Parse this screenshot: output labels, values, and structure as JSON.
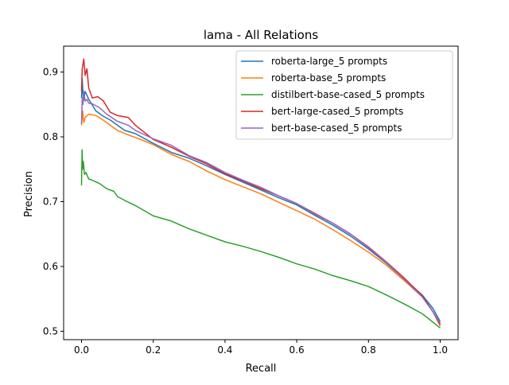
{
  "chart_data": {
    "type": "line",
    "title": "lama - All Relations",
    "xlabel": "Recall",
    "ylabel": "Precision",
    "xlim": [
      -0.05,
      1.05
    ],
    "ylim": [
      0.487,
      0.94
    ],
    "xticks": [
      0.0,
      0.2,
      0.4,
      0.6,
      0.8,
      1.0
    ],
    "xtick_labels": [
      "0.0",
      "0.2",
      "0.4",
      "0.6",
      "0.8",
      "1.0"
    ],
    "yticks": [
      0.5,
      0.6,
      0.7,
      0.8,
      0.9
    ],
    "ytick_labels": [
      "0.5",
      "0.6",
      "0.7",
      "0.8",
      "0.9"
    ],
    "grid": false,
    "legend_position": "top-right",
    "series": [
      {
        "name": "roberta-large_5 prompts",
        "color": "#1f77b4",
        "points": [
          [
            0.0,
            0.86
          ],
          [
            0.002,
            0.89
          ],
          [
            0.005,
            0.855
          ],
          [
            0.01,
            0.87
          ],
          [
            0.02,
            0.858
          ],
          [
            0.04,
            0.84
          ],
          [
            0.06,
            0.832
          ],
          [
            0.08,
            0.826
          ],
          [
            0.1,
            0.818
          ],
          [
            0.12,
            0.81
          ],
          [
            0.15,
            0.805
          ],
          [
            0.2,
            0.79
          ],
          [
            0.25,
            0.776
          ],
          [
            0.3,
            0.767
          ],
          [
            0.35,
            0.755
          ],
          [
            0.4,
            0.742
          ],
          [
            0.45,
            0.73
          ],
          [
            0.5,
            0.718
          ],
          [
            0.55,
            0.706
          ],
          [
            0.6,
            0.695
          ],
          [
            0.65,
            0.679
          ],
          [
            0.7,
            0.664
          ],
          [
            0.75,
            0.647
          ],
          [
            0.8,
            0.627
          ],
          [
            0.85,
            0.605
          ],
          [
            0.9,
            0.58
          ],
          [
            0.95,
            0.556
          ],
          [
            0.98,
            0.535
          ],
          [
            1.0,
            0.515
          ]
        ]
      },
      {
        "name": "roberta-base_5 prompts",
        "color": "#ff7f0e",
        "points": [
          [
            0.0,
            0.818
          ],
          [
            0.003,
            0.84
          ],
          [
            0.006,
            0.822
          ],
          [
            0.01,
            0.83
          ],
          [
            0.02,
            0.835
          ],
          [
            0.04,
            0.833
          ],
          [
            0.06,
            0.826
          ],
          [
            0.08,
            0.818
          ],
          [
            0.1,
            0.81
          ],
          [
            0.13,
            0.803
          ],
          [
            0.16,
            0.797
          ],
          [
            0.2,
            0.788
          ],
          [
            0.25,
            0.773
          ],
          [
            0.3,
            0.762
          ],
          [
            0.35,
            0.747
          ],
          [
            0.4,
            0.734
          ],
          [
            0.45,
            0.723
          ],
          [
            0.5,
            0.712
          ],
          [
            0.55,
            0.699
          ],
          [
            0.6,
            0.686
          ],
          [
            0.65,
            0.673
          ],
          [
            0.7,
            0.657
          ],
          [
            0.75,
            0.64
          ],
          [
            0.8,
            0.622
          ],
          [
            0.85,
            0.602
          ],
          [
            0.9,
            0.578
          ],
          [
            0.95,
            0.553
          ],
          [
            0.98,
            0.53
          ],
          [
            1.0,
            0.508
          ]
        ]
      },
      {
        "name": "distilbert-base-cased_5 prompts",
        "color": "#2ca02c",
        "points": [
          [
            0.0,
            0.725
          ],
          [
            0.0015,
            0.78
          ],
          [
            0.003,
            0.75
          ],
          [
            0.005,
            0.762
          ],
          [
            0.008,
            0.742
          ],
          [
            0.012,
            0.745
          ],
          [
            0.02,
            0.735
          ],
          [
            0.03,
            0.733
          ],
          [
            0.05,
            0.728
          ],
          [
            0.07,
            0.72
          ],
          [
            0.09,
            0.716
          ],
          [
            0.1,
            0.708
          ],
          [
            0.12,
            0.702
          ],
          [
            0.15,
            0.694
          ],
          [
            0.2,
            0.678
          ],
          [
            0.25,
            0.67
          ],
          [
            0.3,
            0.658
          ],
          [
            0.35,
            0.648
          ],
          [
            0.4,
            0.638
          ],
          [
            0.45,
            0.631
          ],
          [
            0.5,
            0.623
          ],
          [
            0.55,
            0.614
          ],
          [
            0.6,
            0.604
          ],
          [
            0.65,
            0.596
          ],
          [
            0.7,
            0.586
          ],
          [
            0.75,
            0.578
          ],
          [
            0.8,
            0.569
          ],
          [
            0.85,
            0.556
          ],
          [
            0.9,
            0.542
          ],
          [
            0.95,
            0.527
          ],
          [
            1.0,
            0.505
          ]
        ]
      },
      {
        "name": "bert-large-cased_5 prompts",
        "color": "#d62728",
        "points": [
          [
            0.0,
            0.87
          ],
          [
            0.002,
            0.905
          ],
          [
            0.004,
            0.912
          ],
          [
            0.006,
            0.92
          ],
          [
            0.01,
            0.895
          ],
          [
            0.015,
            0.905
          ],
          [
            0.02,
            0.875
          ],
          [
            0.03,
            0.86
          ],
          [
            0.045,
            0.862
          ],
          [
            0.06,
            0.856
          ],
          [
            0.08,
            0.838
          ],
          [
            0.1,
            0.833
          ],
          [
            0.13,
            0.83
          ],
          [
            0.15,
            0.818
          ],
          [
            0.2,
            0.796
          ],
          [
            0.25,
            0.784
          ],
          [
            0.3,
            0.77
          ],
          [
            0.35,
            0.758
          ],
          [
            0.4,
            0.743
          ],
          [
            0.45,
            0.732
          ],
          [
            0.5,
            0.72
          ],
          [
            0.55,
            0.709
          ],
          [
            0.6,
            0.697
          ],
          [
            0.65,
            0.682
          ],
          [
            0.7,
            0.667
          ],
          [
            0.75,
            0.65
          ],
          [
            0.8,
            0.63
          ],
          [
            0.85,
            0.607
          ],
          [
            0.9,
            0.582
          ],
          [
            0.95,
            0.555
          ],
          [
            0.98,
            0.53
          ],
          [
            1.0,
            0.51
          ]
        ]
      },
      {
        "name": "bert-base-cased_5 prompts",
        "color": "#9467bd",
        "points": [
          [
            0.0,
            0.82
          ],
          [
            0.002,
            0.86
          ],
          [
            0.004,
            0.85
          ],
          [
            0.006,
            0.87
          ],
          [
            0.01,
            0.855
          ],
          [
            0.015,
            0.858
          ],
          [
            0.02,
            0.852
          ],
          [
            0.03,
            0.851
          ],
          [
            0.05,
            0.845
          ],
          [
            0.07,
            0.835
          ],
          [
            0.1,
            0.824
          ],
          [
            0.13,
            0.818
          ],
          [
            0.15,
            0.81
          ],
          [
            0.2,
            0.797
          ],
          [
            0.25,
            0.787
          ],
          [
            0.3,
            0.771
          ],
          [
            0.35,
            0.76
          ],
          [
            0.4,
            0.745
          ],
          [
            0.45,
            0.733
          ],
          [
            0.5,
            0.722
          ],
          [
            0.55,
            0.709
          ],
          [
            0.6,
            0.697
          ],
          [
            0.65,
            0.681
          ],
          [
            0.7,
            0.667
          ],
          [
            0.75,
            0.65
          ],
          [
            0.8,
            0.629
          ],
          [
            0.85,
            0.606
          ],
          [
            0.9,
            0.58
          ],
          [
            0.95,
            0.553
          ],
          [
            0.98,
            0.53
          ],
          [
            1.0,
            0.512
          ]
        ]
      }
    ]
  }
}
